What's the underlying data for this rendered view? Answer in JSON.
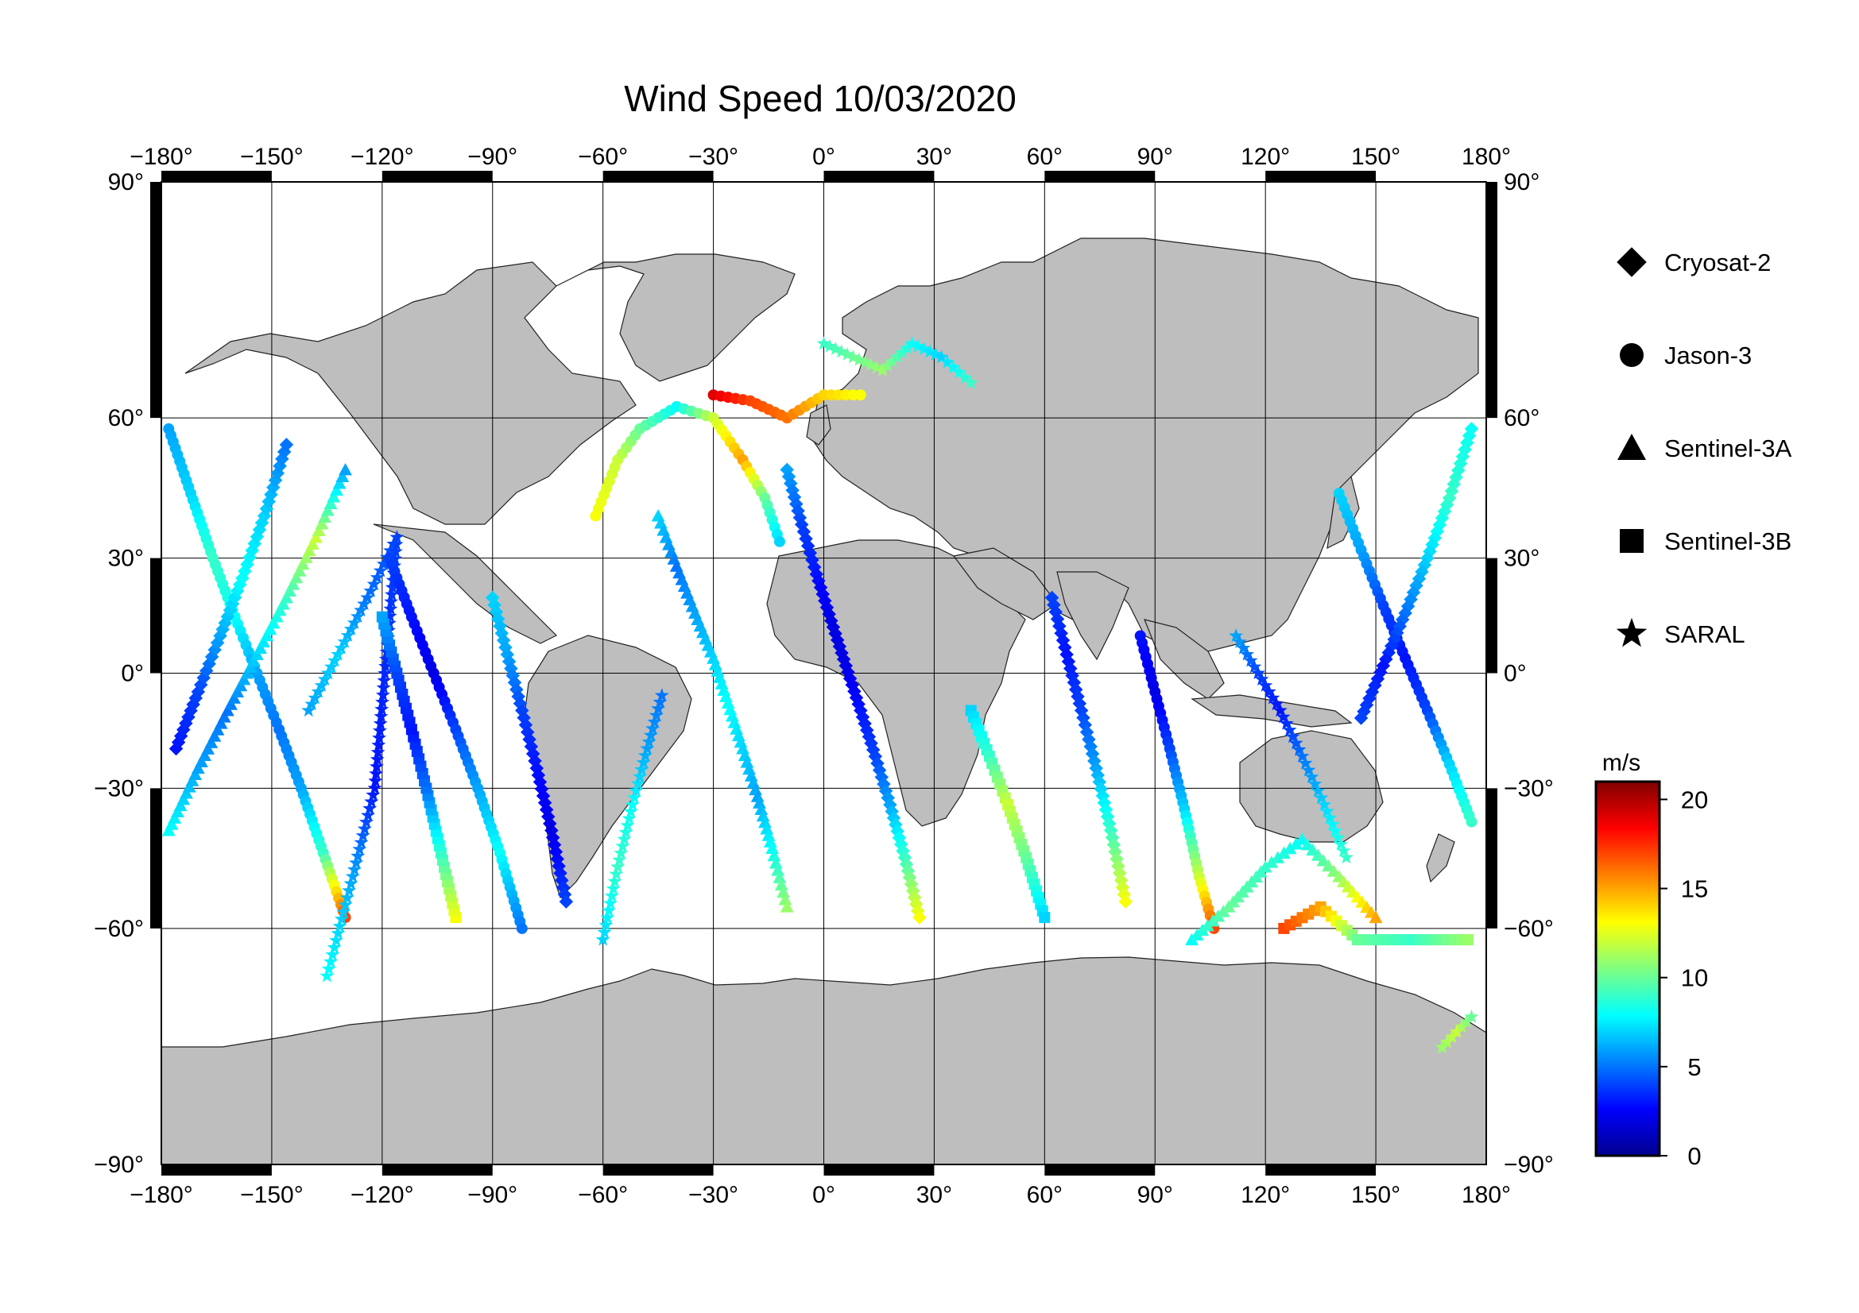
{
  "title": "Wind Speed 10/03/2020",
  "axes": {
    "lon_ticks": [
      -180,
      -150,
      -120,
      -90,
      -60,
      -30,
      0,
      30,
      60,
      90,
      120,
      150,
      180
    ],
    "lat_ticks": [
      90,
      60,
      30,
      0,
      -30,
      -60,
      -90
    ],
    "degree_symbol": "°",
    "lon_range": [
      -180,
      180
    ],
    "lat_range": [
      -90,
      90
    ],
    "grid": true,
    "projection": "Miller cylindrical"
  },
  "legend": {
    "placement": "right",
    "items": [
      {
        "label": "Cryosat-2",
        "marker": "diamond"
      },
      {
        "label": "Jason-3",
        "marker": "circle"
      },
      {
        "label": "Sentinel-3A",
        "marker": "triangle"
      },
      {
        "label": "Sentinel-3B",
        "marker": "square"
      },
      {
        "label": "SARAL",
        "marker": "star"
      }
    ]
  },
  "colorbar": {
    "unit": "m/s",
    "min": 0,
    "max": 21,
    "ticks": [
      0,
      5,
      10,
      15,
      20
    ],
    "colormap": "jet",
    "colors": [
      "#00008f",
      "#0000ff",
      "#0080ff",
      "#00ffff",
      "#80ff80",
      "#ffff00",
      "#ff8000",
      "#ff0000",
      "#800000"
    ]
  },
  "colors": {
    "land": "#bebebe",
    "ocean": "#ffffff",
    "frame": "#000000"
  },
  "chart_data": {
    "type": "scatter",
    "title": "Wind Speed 10/03/2020",
    "xlabel": "",
    "ylabel": "",
    "xlim": [
      -180,
      180
    ],
    "ylim": [
      -90,
      90
    ],
    "value_unit": "m/s",
    "tracks": [
      {
        "satellite": "Jason-3",
        "points": [
          [
            -178,
            58,
            6
          ],
          [
            -172,
            45,
            7
          ],
          [
            -166,
            30,
            9
          ],
          [
            -160,
            15,
            8
          ],
          [
            -154,
            0,
            6
          ],
          [
            -148,
            -15,
            5
          ],
          [
            -142,
            -30,
            6
          ],
          [
            -136,
            -45,
            9
          ],
          [
            -130,
            -58,
            17
          ]
        ]
      },
      {
        "satellite": "Sentinel-3A",
        "points": [
          [
            -178,
            -40,
            8
          ],
          [
            -170,
            -25,
            6
          ],
          [
            -162,
            -10,
            5
          ],
          [
            -154,
            5,
            7
          ],
          [
            -146,
            20,
            9
          ],
          [
            -138,
            35,
            12
          ],
          [
            -130,
            50,
            6
          ]
        ]
      },
      {
        "satellite": "Cryosat-2",
        "points": [
          [
            -176,
            -20,
            3
          ],
          [
            -170,
            -5,
            4
          ],
          [
            -164,
            10,
            6
          ],
          [
            -158,
            25,
            8
          ],
          [
            -152,
            40,
            7
          ],
          [
            -146,
            55,
            5
          ]
        ]
      },
      {
        "satellite": "SARAL",
        "points": [
          [
            -140,
            -10,
            6
          ],
          [
            -132,
            5,
            7
          ],
          [
            -124,
            20,
            5
          ],
          [
            -116,
            35,
            4
          ],
          [
            -122,
            -30,
            3
          ],
          [
            -128,
            -50,
            6
          ],
          [
            -135,
            -68,
            8
          ]
        ]
      },
      {
        "satellite": "Jason-3",
        "points": [
          [
            -118,
            30,
            4
          ],
          [
            -112,
            15,
            3
          ],
          [
            -106,
            0,
            2
          ],
          [
            -100,
            -15,
            4
          ],
          [
            -94,
            -30,
            6
          ],
          [
            -88,
            -45,
            8
          ],
          [
            -82,
            -60,
            5
          ]
        ]
      },
      {
        "satellite": "Sentinel-3B",
        "points": [
          [
            -100,
            -58,
            13
          ],
          [
            -104,
            -45,
            9
          ],
          [
            -108,
            -30,
            5
          ],
          [
            -112,
            -15,
            3
          ],
          [
            -116,
            0,
            4
          ],
          [
            -120,
            15,
            6
          ]
        ]
      },
      {
        "satellite": "Cryosat-2",
        "points": [
          [
            -90,
            20,
            7
          ],
          [
            -86,
            5,
            6
          ],
          [
            -82,
            -10,
            4
          ],
          [
            -78,
            -25,
            3
          ],
          [
            -74,
            -40,
            2
          ],
          [
            -70,
            -55,
            4
          ]
        ]
      },
      {
        "satellite": "SARAL",
        "points": [
          [
            -60,
            -62,
            7
          ],
          [
            -56,
            -48,
            9
          ],
          [
            -52,
            -34,
            8
          ],
          [
            -48,
            -20,
            6
          ],
          [
            -44,
            -6,
            5
          ]
        ]
      },
      {
        "satellite": "Jason-3",
        "points": [
          [
            -62,
            40,
            13
          ],
          [
            -56,
            52,
            12
          ],
          [
            -50,
            58,
            10
          ],
          [
            -40,
            62,
            8
          ],
          [
            -30,
            60,
            12
          ],
          [
            -22,
            52,
            15
          ],
          [
            -16,
            44,
            10
          ],
          [
            -12,
            34,
            7
          ]
        ]
      },
      {
        "satellite": "Sentinel-3A",
        "points": [
          [
            -45,
            40,
            7
          ],
          [
            -40,
            28,
            5
          ],
          [
            -35,
            16,
            6
          ],
          [
            -30,
            4,
            7
          ],
          [
            -26,
            -8,
            8
          ],
          [
            -22,
            -20,
            7
          ],
          [
            -18,
            -32,
            6
          ],
          [
            -14,
            -44,
            8
          ],
          [
            -10,
            -56,
            11
          ]
        ]
      },
      {
        "satellite": "Cryosat-2",
        "points": [
          [
            -10,
            50,
            6
          ],
          [
            -6,
            38,
            4
          ],
          [
            -2,
            26,
            3
          ],
          [
            2,
            14,
            2
          ],
          [
            6,
            2,
            2
          ],
          [
            10,
            -10,
            3
          ],
          [
            14,
            -22,
            4
          ],
          [
            18,
            -34,
            6
          ],
          [
            22,
            -46,
            9
          ],
          [
            26,
            -58,
            13
          ]
        ]
      },
      {
        "satellite": "SARAL",
        "points": [
          [
            0,
            72,
            9
          ],
          [
            8,
            70,
            10
          ],
          [
            16,
            68,
            11
          ],
          [
            24,
            72,
            8
          ],
          [
            32,
            70,
            7
          ],
          [
            40,
            66,
            9
          ]
        ]
      },
      {
        "satellite": "Jason-3",
        "points": [
          [
            -30,
            64,
            19
          ],
          [
            -20,
            63,
            17
          ],
          [
            -10,
            60,
            16
          ],
          [
            0,
            64,
            14
          ],
          [
            10,
            64,
            13
          ]
        ]
      },
      {
        "satellite": "Sentinel-3B",
        "points": [
          [
            40,
            -10,
            7
          ],
          [
            45,
            -22,
            9
          ],
          [
            50,
            -34,
            12
          ],
          [
            55,
            -46,
            10
          ],
          [
            60,
            -58,
            7
          ]
        ]
      },
      {
        "satellite": "Cryosat-2",
        "points": [
          [
            62,
            20,
            4
          ],
          [
            66,
            5,
            3
          ],
          [
            70,
            -10,
            4
          ],
          [
            74,
            -25,
            6
          ],
          [
            78,
            -40,
            9
          ],
          [
            82,
            -55,
            13
          ]
        ]
      },
      {
        "satellite": "Jason-3",
        "points": [
          [
            86,
            10,
            3
          ],
          [
            90,
            -5,
            2
          ],
          [
            94,
            -20,
            4
          ],
          [
            98,
            -35,
            7
          ],
          [
            102,
            -50,
            12
          ],
          [
            106,
            -60,
            17
          ]
        ]
      },
      {
        "satellite": "Sentinel-3A",
        "points": [
          [
            100,
            -62,
            8
          ],
          [
            110,
            -56,
            10
          ],
          [
            120,
            -48,
            9
          ],
          [
            130,
            -42,
            8
          ],
          [
            140,
            -50,
            11
          ],
          [
            150,
            -58,
            15
          ]
        ]
      },
      {
        "satellite": "SARAL",
        "points": [
          [
            112,
            10,
            6
          ],
          [
            118,
            0,
            4
          ],
          [
            124,
            -10,
            3
          ],
          [
            130,
            -22,
            5
          ],
          [
            136,
            -34,
            7
          ],
          [
            142,
            -46,
            9
          ]
        ]
      },
      {
        "satellite": "Jason-3",
        "points": [
          [
            140,
            45,
            7
          ],
          [
            146,
            32,
            6
          ],
          [
            152,
            18,
            4
          ],
          [
            158,
            4,
            3
          ],
          [
            164,
            -10,
            4
          ],
          [
            170,
            -24,
            7
          ],
          [
            176,
            -38,
            9
          ]
        ]
      },
      {
        "satellite": "Cryosat-2",
        "points": [
          [
            176,
            58,
            8
          ],
          [
            170,
            44,
            9
          ],
          [
            164,
            30,
            7
          ],
          [
            158,
            16,
            5
          ],
          [
            152,
            2,
            3
          ],
          [
            146,
            -12,
            4
          ]
        ]
      },
      {
        "satellite": "Sentinel-3B",
        "points": [
          [
            125,
            -60,
            17
          ],
          [
            135,
            -56,
            15
          ],
          [
            145,
            -62,
            10
          ],
          [
            160,
            -62,
            9
          ],
          [
            175,
            -62,
            11
          ]
        ]
      },
      {
        "satellite": "SARAL",
        "points": [
          [
            168,
            -78,
            11
          ],
          [
            172,
            -76,
            12
          ],
          [
            176,
            -74,
            10
          ]
        ]
      }
    ]
  }
}
